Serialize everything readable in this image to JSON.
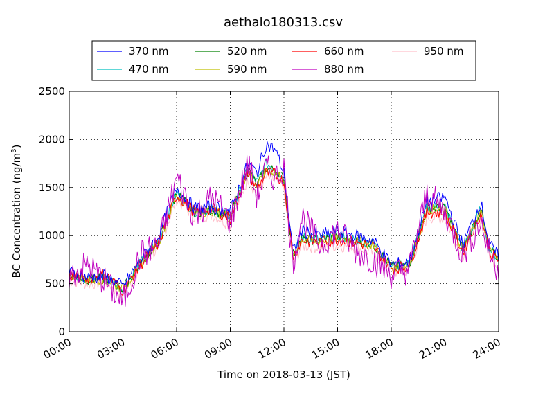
{
  "chart_data": {
    "type": "line",
    "title": "aethalo180313.csv",
    "xlabel": "Time on 2018-03-13 (JST)",
    "ylabel": "BC Concentration (ng/m",
    "ylabel_sup": "3",
    "ylabel_end": ")",
    "x_ticks": [
      "00:00",
      "03:00",
      "06:00",
      "09:00",
      "12:00",
      "15:00",
      "18:00",
      "21:00",
      "24:00"
    ],
    "y_ticks": [
      "0",
      "500",
      "1000",
      "1500",
      "2000",
      "2500"
    ],
    "xlim": [
      "00:00",
      "24:00"
    ],
    "ylim": [
      0,
      2500
    ],
    "grid": true,
    "legend_position": "top-center",
    "x_hours": [
      0.0,
      1.0,
      2.0,
      3.0,
      4.0,
      5.0,
      6.0,
      7.0,
      8.0,
      9.0,
      10.0,
      10.5,
      11.0,
      11.5,
      12.0,
      12.5,
      13.0,
      14.0,
      15.0,
      16.0,
      17.0,
      18.0,
      19.0,
      20.0,
      21.0,
      22.0,
      23.0,
      23.5,
      24.0
    ],
    "series": [
      {
        "name": "370 nm",
        "color": "#0000ff",
        "values": [
          620,
          560,
          580,
          470,
          750,
          1000,
          1500,
          1280,
          1300,
          1250,
          1750,
          1650,
          1950,
          1900,
          1650,
          820,
          1050,
          1000,
          1050,
          1000,
          950,
          700,
          720,
          1350,
          1400,
          900,
          1350,
          900,
          780
        ]
      },
      {
        "name": "470 nm",
        "color": "#00bfbf",
        "values": [
          600,
          550,
          560,
          450,
          720,
          950,
          1450,
          1250,
          1270,
          1200,
          1700,
          1550,
          1750,
          1700,
          1600,
          800,
          980,
          960,
          1000,
          960,
          920,
          680,
          700,
          1300,
          1300,
          860,
          1280,
          860,
          760
        ]
      },
      {
        "name": "520 nm",
        "color": "#008000",
        "values": [
          595,
          545,
          555,
          445,
          715,
          940,
          1440,
          1245,
          1265,
          1195,
          1690,
          1520,
          1700,
          1680,
          1590,
          795,
          970,
          950,
          990,
          950,
          910,
          675,
          695,
          1290,
          1280,
          850,
          1270,
          850,
          755
        ]
      },
      {
        "name": "590 nm",
        "color": "#bfbf00",
        "values": [
          590,
          540,
          550,
          440,
          710,
          930,
          1430,
          1240,
          1260,
          1190,
          1680,
          1500,
          1680,
          1660,
          1580,
          790,
          960,
          940,
          980,
          945,
          905,
          670,
          690,
          1280,
          1260,
          845,
          1260,
          845,
          750
        ]
      },
      {
        "name": "660 nm",
        "color": "#ff0000",
        "values": [
          585,
          560,
          600,
          430,
          700,
          920,
          1420,
          1250,
          1280,
          1180,
          1660,
          1480,
          1650,
          1640,
          1560,
          780,
          950,
          930,
          960,
          930,
          890,
          660,
          680,
          1250,
          1230,
          830,
          1230,
          830,
          740
        ]
      },
      {
        "name": "880 nm",
        "color": "#bf00bf",
        "values": [
          560,
          700,
          520,
          300,
          800,
          900,
          1600,
          1200,
          1400,
          1150,
          1750,
          1400,
          1700,
          1600,
          1700,
          700,
          1200,
          900,
          1050,
          850,
          750,
          600,
          650,
          1450,
          1250,
          800,
          1150,
          800,
          650
        ]
      },
      {
        "name": "950 nm",
        "color": "#ffc0cb",
        "values": [
          540,
          500,
          520,
          380,
          680,
          880,
          1380,
          1200,
          1220,
          1120,
          1600,
          1420,
          1600,
          1580,
          1500,
          700,
          900,
          880,
          900,
          880,
          820,
          620,
          640,
          1200,
          1180,
          780,
          1180,
          780,
          700
        ]
      }
    ]
  }
}
